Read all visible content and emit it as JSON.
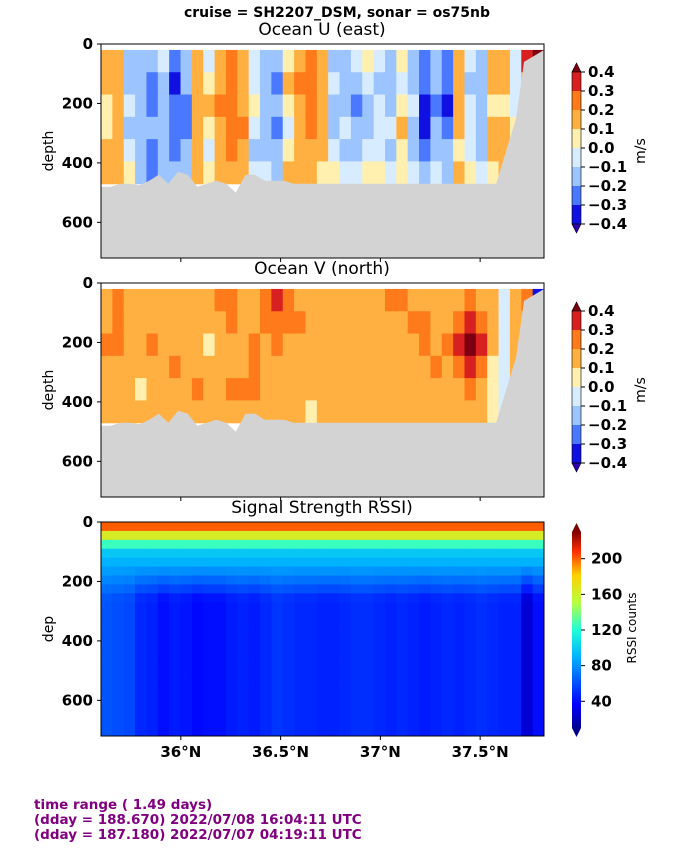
{
  "figure": {
    "suptitle": "cruise = SH2207_DSM,  sonar = os75nb",
    "colors": {
      "land": "#d3d3d3",
      "frame": "#000000",
      "footer_text": "#800080"
    }
  },
  "footer": {
    "lines": [
      "time range ( 1.49 days)",
      "(dday = 188.670) 2022/07/08 16:04:11 UTC",
      "(dday = 187.180) 2022/07/07 04:19:11 UTC"
    ]
  },
  "chart_data": [
    {
      "type": "heatmap",
      "title": "Ocean U (east)",
      "ylabel": "depth",
      "xlabel": "",
      "ylim": [
        720,
        0
      ],
      "yticks": [
        0,
        200,
        400,
        600
      ],
      "xlim": [
        35.6,
        37.82
      ],
      "xticks": [
        36.0,
        36.5,
        37.0,
        37.5
      ],
      "xtick_labels": [],
      "colorbar": {
        "label": "m/s",
        "ticks": [
          "0.4",
          "0.3",
          "0.2",
          "0.1",
          "0.0",
          "−0.1",
          "−0.2",
          "−0.3",
          "−0.4"
        ],
        "levels": [
          0.4,
          0.3,
          0.2,
          0.1,
          0.0,
          -0.1,
          -0.2,
          -0.3,
          -0.4
        ],
        "colors": [
          "#7d0010",
          "#d82020",
          "#ff7a1a",
          "#ffb040",
          "#fff0b0",
          "#d8ecff",
          "#9cc4ff",
          "#4a78ff",
          "#1010e0",
          "#3000b0"
        ]
      },
      "land_bottom_depth": [
        480,
        480,
        470,
        470,
        475,
        460,
        440,
        470,
        430,
        440,
        480,
        470,
        460,
        470,
        500,
        440,
        440,
        460,
        460,
        460,
        470,
        470,
        470,
        470,
        470,
        470,
        470,
        470,
        470,
        470,
        470,
        470,
        470,
        470,
        470,
        470,
        470,
        470,
        470,
        470,
        470,
        470,
        470,
        470,
        470,
        470,
        470
      ],
      "coastline_x": [
        37.58,
        37.82
      ],
      "coastline_depth": [
        470,
        20
      ],
      "columns": [
        [
          0.05,
          0.05,
          0.0,
          0.0,
          0.05,
          0.1
        ],
        [
          0.05,
          0.05,
          0.1,
          0.1,
          0.05,
          0.05
        ],
        [
          -0.1,
          -0.1,
          -0.05,
          -0.1,
          -0.05,
          0.0
        ],
        [
          -0.15,
          -0.15,
          -0.15,
          -0.1,
          -0.15,
          -0.1
        ],
        [
          -0.15,
          -0.25,
          -0.2,
          -0.15,
          -0.2,
          -0.25
        ],
        [
          -0.05,
          -0.1,
          -0.15,
          -0.15,
          -0.15,
          -0.1
        ],
        [
          -0.25,
          -0.3,
          -0.2,
          -0.2,
          -0.25,
          -0.1
        ],
        [
          -0.15,
          -0.15,
          -0.2,
          -0.2,
          -0.15,
          -0.1
        ],
        [
          0.05,
          0.05,
          0.05,
          0.05,
          0.05,
          0.05
        ],
        [
          -0.05,
          0.0,
          0.05,
          0.0,
          -0.05,
          0.0
        ],
        [
          0.05,
          0.1,
          0.15,
          0.1,
          0.05,
          0.05
        ],
        [
          0.15,
          0.2,
          0.15,
          0.15,
          0.15,
          0.1
        ],
        [
          0.05,
          0.1,
          0.1,
          0.15,
          0.1,
          0.05
        ],
        [
          -0.05,
          -0.05,
          0.0,
          -0.05,
          -0.1,
          -0.05
        ],
        [
          -0.1,
          -0.15,
          -0.1,
          -0.15,
          -0.1,
          -0.05
        ],
        [
          -0.15,
          -0.2,
          -0.15,
          -0.2,
          -0.15,
          -0.1
        ],
        [
          0.0,
          0.05,
          0.0,
          -0.05,
          0.0,
          0.05
        ],
        [
          0.1,
          0.15,
          0.1,
          0.05,
          0.1,
          0.05
        ],
        [
          0.2,
          0.2,
          0.15,
          0.15,
          0.1,
          0.05
        ],
        [
          0.05,
          0.1,
          0.05,
          0.05,
          0.05,
          0.0
        ],
        [
          -0.1,
          -0.05,
          -0.1,
          -0.1,
          -0.05,
          0.0
        ],
        [
          -0.15,
          -0.1,
          -0.15,
          -0.05,
          -0.1,
          -0.05
        ],
        [
          -0.05,
          -0.15,
          -0.2,
          -0.1,
          -0.15,
          -0.05
        ],
        [
          0.0,
          -0.05,
          -0.1,
          -0.1,
          -0.05,
          0.0
        ],
        [
          -0.05,
          -0.1,
          -0.05,
          -0.05,
          -0.05,
          0.0
        ],
        [
          -0.1,
          -0.15,
          -0.1,
          -0.05,
          -0.1,
          -0.05
        ],
        [
          0.0,
          -0.05,
          0.0,
          0.05,
          0.0,
          0.0
        ],
        [
          -0.1,
          -0.1,
          -0.05,
          -0.15,
          -0.1,
          -0.05
        ],
        [
          -0.2,
          -0.25,
          -0.3,
          -0.35,
          -0.25,
          -0.15
        ],
        [
          -0.15,
          -0.15,
          -0.2,
          -0.15,
          -0.1,
          -0.05
        ],
        [
          -0.2,
          -0.25,
          -0.3,
          -0.2,
          -0.15,
          -0.1
        ],
        [
          0.05,
          0.05,
          0.1,
          0.05,
          0.0,
          0.05
        ],
        [
          -0.05,
          -0.1,
          -0.05,
          -0.05,
          -0.05,
          0.0
        ],
        [
          -0.15,
          -0.1,
          -0.15,
          -0.1,
          -0.1,
          -0.05
        ],
        [
          0.05,
          0.05,
          0.0,
          0.05,
          0.05,
          0.0
        ],
        [
          0.05,
          0.05,
          0.0,
          0.05,
          0.05,
          0.05
        ],
        [
          -0.05,
          -0.05,
          -0.05,
          0.0,
          -0.05,
          0.0
        ],
        [
          0.3,
          0.05,
          0.05,
          0.05,
          0.05,
          0.05
        ],
        [
          0.35,
          0.3,
          0.05,
          0.05,
          0.05,
          0.05
        ]
      ]
    },
    {
      "type": "heatmap",
      "title": "Ocean V (north)",
      "ylabel": "depth",
      "xlabel": "",
      "ylim": [
        720,
        0
      ],
      "yticks": [
        0,
        200,
        400,
        600
      ],
      "xlim": [
        35.6,
        37.82
      ],
      "xticks": [
        36.0,
        36.5,
        37.0,
        37.5
      ],
      "xtick_labels": [],
      "colorbar": {
        "label": "m/s",
        "ticks": [
          "0.4",
          "0.3",
          "0.2",
          "0.1",
          "0.0",
          "−0.1",
          "−0.2",
          "−0.3",
          "−0.4"
        ],
        "levels": [
          0.4,
          0.3,
          0.2,
          0.1,
          0.0,
          -0.1,
          -0.2,
          -0.3,
          -0.4
        ],
        "colors": [
          "#7d0010",
          "#d82020",
          "#ff7a1a",
          "#ffb040",
          "#fff0b0",
          "#d8ecff",
          "#9cc4ff",
          "#4a78ff",
          "#1010e0",
          "#3000b0"
        ]
      },
      "land_bottom_depth": [
        480,
        480,
        470,
        470,
        475,
        460,
        440,
        470,
        430,
        440,
        480,
        470,
        460,
        470,
        500,
        440,
        440,
        460,
        460,
        460,
        470,
        470,
        470,
        470,
        470,
        470,
        470,
        470,
        470,
        470,
        470,
        470,
        470,
        470,
        470,
        470,
        470,
        470,
        470,
        470,
        470,
        470,
        470,
        470,
        470,
        470,
        470
      ],
      "coastline_x": [
        37.58,
        37.82
      ],
      "coastline_depth": [
        470,
        20
      ],
      "columns": [
        [
          0.1,
          0.1,
          0.15,
          0.1,
          0.05,
          0.05
        ],
        [
          0.15,
          0.2,
          0.15,
          0.1,
          0.05,
          0.05
        ],
        [
          0.05,
          0.1,
          0.05,
          0.05,
          0.05,
          0.1
        ],
        [
          0.05,
          0.05,
          0.1,
          0.05,
          0.0,
          0.05
        ],
        [
          0.05,
          0.1,
          0.15,
          0.05,
          0.1,
          0.05
        ],
        [
          0.05,
          0.05,
          0.05,
          0.1,
          0.05,
          0.1
        ],
        [
          0.05,
          0.1,
          0.1,
          0.15,
          0.1,
          0.05
        ],
        [
          0.05,
          0.05,
          0.05,
          0.05,
          0.05,
          0.05
        ],
        [
          0.1,
          0.05,
          0.05,
          0.1,
          0.15,
          0.05
        ],
        [
          0.05,
          0.05,
          0.0,
          0.05,
          0.1,
          0.05
        ],
        [
          0.15,
          0.1,
          0.05,
          0.05,
          0.1,
          0.05
        ],
        [
          0.15,
          0.15,
          0.1,
          0.05,
          0.15,
          0.05
        ],
        [
          0.1,
          0.1,
          0.05,
          0.1,
          0.2,
          0.05
        ],
        [
          0.05,
          0.1,
          0.15,
          0.15,
          0.15,
          0.05
        ],
        [
          0.2,
          0.15,
          0.1,
          0.05,
          0.1,
          0.05
        ],
        [
          0.25,
          0.15,
          0.15,
          0.1,
          0.05,
          0.05
        ],
        [
          0.2,
          0.15,
          0.1,
          0.1,
          0.05,
          0.05
        ],
        [
          0.1,
          0.15,
          0.1,
          0.05,
          0.05,
          0.05
        ],
        [
          0.05,
          0.05,
          0.1,
          0.05,
          0.05,
          0.0
        ],
        [
          0.05,
          0.05,
          0.05,
          0.05,
          0.05,
          0.05
        ],
        [
          0.05,
          0.1,
          0.05,
          0.1,
          0.05,
          0.05
        ],
        [
          0.05,
          0.05,
          0.05,
          0.05,
          0.05,
          0.05
        ],
        [
          0.05,
          0.05,
          0.05,
          0.05,
          0.05,
          0.05
        ],
        [
          0.1,
          0.05,
          0.05,
          0.05,
          0.05,
          0.05
        ],
        [
          0.1,
          0.05,
          0.1,
          0.05,
          0.05,
          0.05
        ],
        [
          0.2,
          0.1,
          0.05,
          0.05,
          0.05,
          0.05
        ],
        [
          0.15,
          0.1,
          0.05,
          0.05,
          0.05,
          0.05
        ],
        [
          0.1,
          0.15,
          0.1,
          0.05,
          0.05,
          0.05
        ],
        [
          0.1,
          0.15,
          0.15,
          0.1,
          0.05,
          0.05
        ],
        [
          0.05,
          0.1,
          0.1,
          0.15,
          0.1,
          0.05
        ],
        [
          0.05,
          0.1,
          0.15,
          0.1,
          0.05,
          0.05
        ],
        [
          0.1,
          0.15,
          0.25,
          0.2,
          0.1,
          0.05
        ],
        [
          0.15,
          0.25,
          0.35,
          0.3,
          0.15,
          0.05
        ],
        [
          0.1,
          0.2,
          0.25,
          0.15,
          0.05,
          0.05
        ],
        [
          0.05,
          0.05,
          0.05,
          0.0,
          0.0,
          0.0
        ],
        [
          -0.05,
          -0.05,
          -0.05,
          -0.05,
          -0.05,
          -0.05
        ],
        [
          0.05,
          0.05,
          0.05,
          0.05,
          0.05,
          0.05
        ],
        [
          0.2,
          0.1,
          0.05,
          0.05,
          0.05,
          0.05
        ],
        [
          -0.35,
          0.1,
          0.05,
          0.05,
          0.05,
          0.05
        ]
      ]
    },
    {
      "type": "heatmap",
      "title": "Signal Strength RSSI)",
      "ylabel": "dep",
      "xlabel": "",
      "ylim": [
        720,
        0
      ],
      "yticks": [
        0,
        200,
        400,
        600
      ],
      "xlim": [
        35.6,
        37.82
      ],
      "xticks": [
        36.0,
        36.5,
        37.0,
        37.5
      ],
      "xtick_labels": [
        "36°N",
        "36.5°N",
        "37°N",
        "37.5°N"
      ],
      "colorbar": {
        "label": "RSSI counts",
        "ticks": [
          "200",
          "160",
          "120",
          "80",
          "40"
        ],
        "tick_values": [
          200,
          160,
          120,
          80,
          40
        ],
        "range": [
          10,
          230
        ]
      },
      "surface_rssi": [
        200,
        170,
        140,
        120,
        100,
        90
      ],
      "surface_depths": [
        20,
        40,
        60,
        80,
        100,
        140
      ],
      "deep_rssi_by_column": [
        62,
        60,
        58,
        48,
        46,
        40,
        44,
        42,
        38,
        40,
        40,
        44,
        46,
        44,
        48,
        52,
        50,
        48,
        48,
        46,
        46,
        48,
        50,
        50,
        48,
        46,
        48,
        46,
        44,
        46,
        48,
        46,
        48,
        50,
        48,
        46,
        46,
        26,
        40
      ]
    }
  ]
}
